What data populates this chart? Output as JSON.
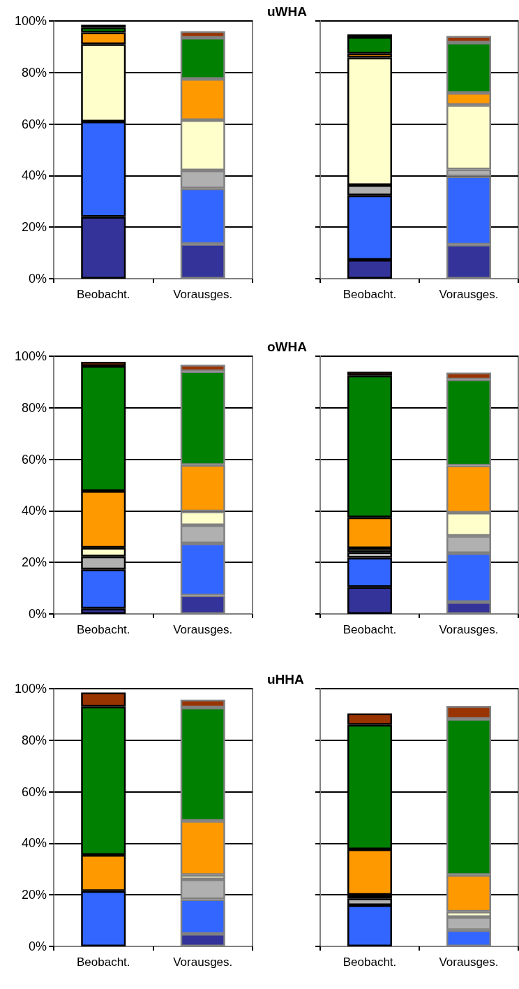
{
  "chart_data": [
    {
      "type": "bar",
      "stacked": true,
      "categories": [
        "Beobacht.",
        "Vorausges."
      ],
      "ylim": [
        0,
        100
      ],
      "yticks": [
        {
          "value": 0,
          "label": "0%"
        },
        {
          "value": 20,
          "label": "20%"
        },
        {
          "value": 40,
          "label": "40%"
        },
        {
          "value": 60,
          "label": "60%"
        },
        {
          "value": 80,
          "label": "80%"
        },
        {
          "value": 100,
          "label": "100%"
        }
      ],
      "grid": "y",
      "series": [
        {
          "color": "#333399",
          "values": [
            24,
            13.5
          ]
        },
        {
          "color": "#3366ff",
          "values": [
            37,
            21.5
          ]
        },
        {
          "color": "#b0b0b0",
          "values": [
            0,
            7
          ]
        },
        {
          "color": "#ffffcc",
          "values": [
            30,
            19.5
          ]
        },
        {
          "color": "#ff9900",
          "values": [
            4.5,
            16
          ]
        },
        {
          "color": "#008000",
          "values": [
            2,
            16
          ]
        },
        {
          "color": "#993300",
          "values": [
            1,
            2.5
          ]
        }
      ]
    },
    {
      "type": "bar",
      "stacked": true,
      "title": "uWHA",
      "tick_labels": "x",
      "categories": [
        "Beobacht.",
        "Vorausges."
      ],
      "ylim": [
        0,
        100
      ],
      "yticks": [
        0,
        20,
        40,
        60,
        80,
        100
      ],
      "grid": "y",
      "series": [
        {
          "color": "#333399",
          "values": [
            7.3,
            13.2
          ]
        },
        {
          "color": "#3366ff",
          "values": [
            25,
            26.5
          ]
        },
        {
          "color": "#b0b0b0",
          "values": [
            4,
            2.7
          ]
        },
        {
          "color": "#ffffcc",
          "values": [
            49.5,
            25
          ]
        },
        {
          "color": "#ff9900",
          "values": [
            1.5,
            4.7
          ]
        },
        {
          "color": "#008000",
          "values": [
            6.5,
            19.5
          ]
        },
        {
          "color": "#993300",
          "values": [
            1,
            2.6
          ]
        }
      ]
    },
    {
      "type": "bar",
      "stacked": true,
      "categories": [
        "Beobacht.",
        "Vorausges."
      ],
      "ylim": [
        0,
        100
      ],
      "yticks": [
        {
          "value": 0,
          "label": "0%"
        },
        {
          "value": 20,
          "label": "20%"
        },
        {
          "value": 40,
          "label": "40%"
        },
        {
          "value": 60,
          "label": "60%"
        },
        {
          "value": 80,
          "label": "80%"
        },
        {
          "value": 100,
          "label": "100%"
        }
      ],
      "grid": "y",
      "series": [
        {
          "color": "#333399",
          "values": [
            2.1,
            7.2
          ]
        },
        {
          "color": "#3366ff",
          "values": [
            15.2,
            20.2
          ]
        },
        {
          "color": "#b0b0b0",
          "values": [
            5,
            7
          ]
        },
        {
          "color": "#ffffcc",
          "values": [
            3.4,
            5.4
          ]
        },
        {
          "color": "#ff9900",
          "values": [
            22,
            18
          ]
        },
        {
          "color": "#008000",
          "values": [
            48.5,
            36.4
          ]
        },
        {
          "color": "#993300",
          "values": [
            1.6,
            2.5
          ]
        }
      ]
    },
    {
      "type": "bar",
      "stacked": true,
      "title": "oWHA",
      "tick_labels": "x",
      "categories": [
        "Beobacht.",
        "Vorausges."
      ],
      "ylim": [
        0,
        100
      ],
      "yticks": [
        0,
        20,
        40,
        60,
        80,
        100
      ],
      "grid": "y",
      "series": [
        {
          "color": "#333399",
          "values": [
            10.4,
            4.6
          ]
        },
        {
          "color": "#3366ff",
          "values": [
            11.4,
            19
          ]
        },
        {
          "color": "#b0b0b0",
          "values": [
            2.2,
            6.7
          ]
        },
        {
          "color": "#ffffcc",
          "values": [
            1.5,
            9
          ]
        },
        {
          "color": "#ff9900",
          "values": [
            12,
            18.3
          ]
        },
        {
          "color": "#008000",
          "values": [
            55,
            33.4
          ]
        },
        {
          "color": "#993300",
          "values": [
            1.5,
            2.6
          ]
        }
      ]
    },
    {
      "type": "bar",
      "stacked": true,
      "categories": [
        "Beobacht.",
        "Vorausges."
      ],
      "ylim": [
        0,
        100
      ],
      "yticks": [
        {
          "value": 0,
          "label": "0%"
        },
        {
          "value": 20,
          "label": "20%"
        },
        {
          "value": 40,
          "label": "40%"
        },
        {
          "value": 60,
          "label": "60%"
        },
        {
          "value": 80,
          "label": "80%"
        },
        {
          "value": 100,
          "label": "100%"
        }
      ],
      "grid": "y",
      "series": [
        {
          "color": "#333399",
          "values": [
            0,
            4.9
          ]
        },
        {
          "color": "#3366ff",
          "values": [
            21.5,
            13.4
          ]
        },
        {
          "color": "#b0b0b0",
          "values": [
            0,
            7.7
          ]
        },
        {
          "color": "#ffffcc",
          "values": [
            0,
            1.7
          ]
        },
        {
          "color": "#ff9900",
          "values": [
            14,
            21
          ]
        },
        {
          "color": "#008000",
          "values": [
            57.5,
            44
          ]
        },
        {
          "color": "#993300",
          "values": [
            5.5,
            3
          ]
        }
      ]
    },
    {
      "type": "bar",
      "stacked": true,
      "title": "uHHA",
      "tick_labels": "x",
      "categories": [
        "Beobacht.",
        "Vorausges."
      ],
      "ylim": [
        0,
        100
      ],
      "yticks": [
        0,
        20,
        40,
        60,
        80,
        100
      ],
      "grid": "y",
      "series": [
        {
          "color": "#333399",
          "values": [
            0,
            0
          ]
        },
        {
          "color": "#3366ff",
          "values": [
            16,
            6.3
          ]
        },
        {
          "color": "#b0b0b0",
          "values": [
            2.6,
            5.1
          ]
        },
        {
          "color": "#ffffcc",
          "values": [
            1.4,
            2.1
          ]
        },
        {
          "color": "#ff9900",
          "values": [
            17.7,
            14.2
          ]
        },
        {
          "color": "#008000",
          "values": [
            48.3,
            60.6
          ]
        },
        {
          "color": "#993300",
          "values": [
            4.4,
            4.9
          ]
        }
      ]
    }
  ]
}
